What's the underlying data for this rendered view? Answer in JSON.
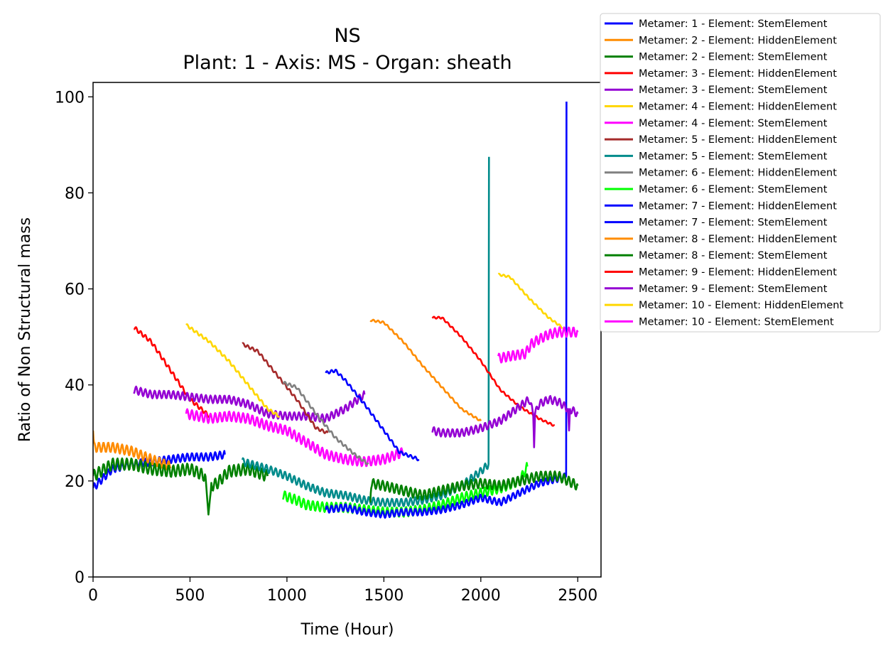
{
  "chart_data": {
    "type": "line",
    "title": "NS",
    "subtitle": "Plant: 1 - Axis: MS - Organ: sheath",
    "xlabel": "Time (Hour)",
    "ylabel": "Ratio of Non Structural mass",
    "xlim": [
      0,
      2620
    ],
    "ylim": [
      0,
      103
    ],
    "xticks": [
      0,
      500,
      1000,
      1500,
      2000,
      2500
    ],
    "yticks": [
      0,
      20,
      40,
      60,
      80,
      100
    ],
    "grid": false,
    "legend_position": "outside-top-right",
    "series": [
      {
        "name": "Metamer: 1 - Element: StemElement",
        "color": "#0000ff",
        "wiggle": 0.8,
        "points": [
          [
            0,
            18.5
          ],
          [
            100,
            22.5
          ],
          [
            200,
            23.5
          ],
          [
            300,
            24
          ],
          [
            400,
            24.5
          ],
          [
            500,
            25
          ],
          [
            600,
            25
          ],
          [
            680,
            25.5
          ]
        ]
      },
      {
        "name": "Metamer: 2 - Element: HiddenElement",
        "color": "#ff8c00",
        "wiggle": 1.0,
        "points": [
          [
            0,
            30.5
          ],
          [
            5,
            27
          ],
          [
            100,
            27
          ],
          [
            200,
            26.2
          ],
          [
            300,
            24.5
          ],
          [
            400,
            23
          ]
        ]
      },
      {
        "name": "Metamer: 2 - Element: StemElement",
        "color": "#008000",
        "wiggle": 1.2,
        "points": [
          [
            0,
            21
          ],
          [
            100,
            23.5
          ],
          [
            200,
            23.5
          ],
          [
            300,
            22.5
          ],
          [
            400,
            22
          ],
          [
            500,
            22.5
          ],
          [
            580,
            21
          ],
          [
            595,
            13
          ],
          [
            610,
            19
          ],
          [
            640,
            19.5
          ],
          [
            700,
            22
          ],
          [
            800,
            22.5
          ],
          [
            900,
            21
          ]
        ]
      },
      {
        "name": "Metamer: 3 - Element: HiddenElement",
        "color": "#ff0000",
        "wiggle": 0.4,
        "points": [
          [
            210,
            52
          ],
          [
            300,
            49
          ],
          [
            400,
            43
          ],
          [
            500,
            37
          ],
          [
            600,
            33.5
          ]
        ]
      },
      {
        "name": "Metamer: 3 - Element: StemElement",
        "color": "#9400d3",
        "wiggle": 0.8,
        "points": [
          [
            210,
            39
          ],
          [
            300,
            38
          ],
          [
            400,
            38
          ],
          [
            500,
            37.5
          ],
          [
            600,
            37
          ],
          [
            700,
            37
          ],
          [
            800,
            36
          ],
          [
            900,
            34
          ],
          [
            1000,
            33.5
          ],
          [
            1100,
            33.5
          ],
          [
            1200,
            33
          ],
          [
            1300,
            35
          ],
          [
            1400,
            38
          ]
        ]
      },
      {
        "name": "Metamer: 4 - Element: HiddenElement",
        "color": "#ffd700",
        "wiggle": 0.3,
        "points": [
          [
            480,
            52.5
          ],
          [
            600,
            49
          ],
          [
            700,
            45
          ],
          [
            800,
            40
          ],
          [
            900,
            35
          ],
          [
            960,
            33.5
          ]
        ]
      },
      {
        "name": "Metamer: 4 - Element: StemElement",
        "color": "#ff00ff",
        "wiggle": 1.0,
        "points": [
          [
            480,
            34
          ],
          [
            600,
            33
          ],
          [
            700,
            33.5
          ],
          [
            800,
            33
          ],
          [
            900,
            31.5
          ],
          [
            1000,
            30.5
          ],
          [
            1100,
            28
          ],
          [
            1200,
            25.5
          ],
          [
            1300,
            24.5
          ],
          [
            1400,
            24
          ],
          [
            1500,
            24.5
          ],
          [
            1600,
            26
          ]
        ]
      },
      {
        "name": "Metamer: 5 - Element: HiddenElement",
        "color": "#a52a2a",
        "wiggle": 0.3,
        "points": [
          [
            770,
            48.5
          ],
          [
            850,
            47
          ],
          [
            950,
            42
          ],
          [
            1050,
            37
          ],
          [
            1150,
            31
          ],
          [
            1210,
            30
          ]
        ]
      },
      {
        "name": "Metamer: 5 - Element: StemElement",
        "color": "#008b8b",
        "wiggle": 0.8,
        "points": [
          [
            770,
            24
          ],
          [
            900,
            22.5
          ],
          [
            1000,
            21
          ],
          [
            1100,
            19
          ],
          [
            1200,
            17.5
          ],
          [
            1300,
            17
          ],
          [
            1400,
            16
          ],
          [
            1500,
            15.5
          ],
          [
            1600,
            15.5
          ],
          [
            1700,
            16
          ],
          [
            1800,
            17
          ],
          [
            1900,
            19
          ],
          [
            1950,
            20.5
          ],
          [
            2000,
            22
          ],
          [
            2040,
            23.5
          ],
          [
            2042,
            87.5
          ]
        ]
      },
      {
        "name": "Metamer: 6 - Element: HiddenElement",
        "color": "#808080",
        "wiggle": 0.3,
        "points": [
          [
            980,
            40.5
          ],
          [
            1050,
            39.5
          ],
          [
            1150,
            34
          ],
          [
            1250,
            29
          ],
          [
            1350,
            25.5
          ],
          [
            1420,
            23.5
          ]
        ]
      },
      {
        "name": "Metamer: 6 - Element: StemElement",
        "color": "#00ff00",
        "wiggle": 1.0,
        "points": [
          [
            980,
            17
          ],
          [
            1050,
            16
          ],
          [
            1100,
            15
          ],
          [
            1200,
            14.5
          ],
          [
            1300,
            14.5
          ],
          [
            1400,
            14
          ],
          [
            1500,
            13.5
          ],
          [
            1600,
            13.5
          ],
          [
            1700,
            14
          ],
          [
            1800,
            15
          ],
          [
            1900,
            16.5
          ],
          [
            2000,
            17.5
          ],
          [
            2100,
            18.5
          ],
          [
            2200,
            20
          ],
          [
            2240,
            23
          ]
        ]
      },
      {
        "name": "Metamer: 7 - Element: HiddenElement",
        "color": "#0000ff",
        "wiggle": 0.3,
        "points": [
          [
            1200,
            42.5
          ],
          [
            1250,
            43
          ],
          [
            1300,
            41
          ],
          [
            1400,
            36
          ],
          [
            1500,
            30.5
          ],
          [
            1580,
            26
          ],
          [
            1680,
            24.5
          ]
        ]
      },
      {
        "name": "Metamer: 7 - Element: StemElement",
        "color": "#0000ff",
        "wiggle": 0.7,
        "points": [
          [
            1200,
            14
          ],
          [
            1300,
            14.5
          ],
          [
            1400,
            13.5
          ],
          [
            1500,
            13
          ],
          [
            1600,
            13.5
          ],
          [
            1700,
            13.5
          ],
          [
            1800,
            14
          ],
          [
            1900,
            15
          ],
          [
            2000,
            16.5
          ],
          [
            2100,
            15.5
          ],
          [
            2200,
            17.5
          ],
          [
            2300,
            19.5
          ],
          [
            2400,
            20.5
          ],
          [
            2440,
            21
          ],
          [
            2442,
            99
          ]
        ]
      },
      {
        "name": "Metamer: 8 - Element: HiddenElement",
        "color": "#ff8c00",
        "wiggle": 0.2,
        "points": [
          [
            1430,
            53.5
          ],
          [
            1500,
            53
          ],
          [
            1600,
            49
          ],
          [
            1700,
            44
          ],
          [
            1800,
            39.5
          ],
          [
            1900,
            35
          ],
          [
            2000,
            32.5
          ]
        ]
      },
      {
        "name": "Metamer: 8 - Element: StemElement",
        "color": "#008000",
        "wiggle": 1.0,
        "points": [
          [
            1430,
            15.5
          ],
          [
            1435,
            19.5
          ],
          [
            1500,
            19
          ],
          [
            1600,
            18
          ],
          [
            1700,
            17
          ],
          [
            1800,
            18
          ],
          [
            1900,
            19
          ],
          [
            2000,
            19.5
          ],
          [
            2100,
            19
          ],
          [
            2200,
            20
          ],
          [
            2300,
            21
          ],
          [
            2400,
            21
          ],
          [
            2500,
            19
          ]
        ]
      },
      {
        "name": "Metamer: 9 - Element: HiddenElement",
        "color": "#ff0000",
        "wiggle": 0.2,
        "points": [
          [
            1750,
            54
          ],
          [
            1800,
            54
          ],
          [
            1900,
            50
          ],
          [
            2000,
            45
          ],
          [
            2100,
            39
          ],
          [
            2200,
            35.5
          ],
          [
            2300,
            33
          ],
          [
            2380,
            31.5
          ]
        ]
      },
      {
        "name": "Metamer: 9 - Element: StemElement",
        "color": "#9400d3",
        "wiggle": 0.8,
        "points": [
          [
            1750,
            30.5
          ],
          [
            1800,
            30
          ],
          [
            1900,
            30
          ],
          [
            2000,
            31
          ],
          [
            2100,
            32.5
          ],
          [
            2200,
            35.5
          ],
          [
            2250,
            37
          ],
          [
            2270,
            34
          ],
          [
            2275,
            27
          ],
          [
            2280,
            34
          ],
          [
            2300,
            36
          ],
          [
            2350,
            37
          ],
          [
            2400,
            36.5
          ],
          [
            2450,
            35
          ],
          [
            2455,
            30.5
          ],
          [
            2460,
            35
          ],
          [
            2500,
            34
          ]
        ]
      },
      {
        "name": "Metamer: 10 - Element: HiddenElement",
        "color": "#ffd700",
        "wiggle": 0.2,
        "points": [
          [
            2090,
            63
          ],
          [
            2150,
            62.5
          ],
          [
            2250,
            58
          ],
          [
            2350,
            54
          ],
          [
            2420,
            52
          ]
        ]
      },
      {
        "name": "Metamer: 10 - Element: StemElement",
        "color": "#ff00ff",
        "wiggle": 1.0,
        "points": [
          [
            2090,
            45.5
          ],
          [
            2150,
            46
          ],
          [
            2230,
            46.5
          ],
          [
            2260,
            48.5
          ],
          [
            2300,
            49.5
          ],
          [
            2350,
            50.5
          ],
          [
            2400,
            51
          ],
          [
            2450,
            51
          ],
          [
            2500,
            51
          ]
        ]
      }
    ]
  }
}
